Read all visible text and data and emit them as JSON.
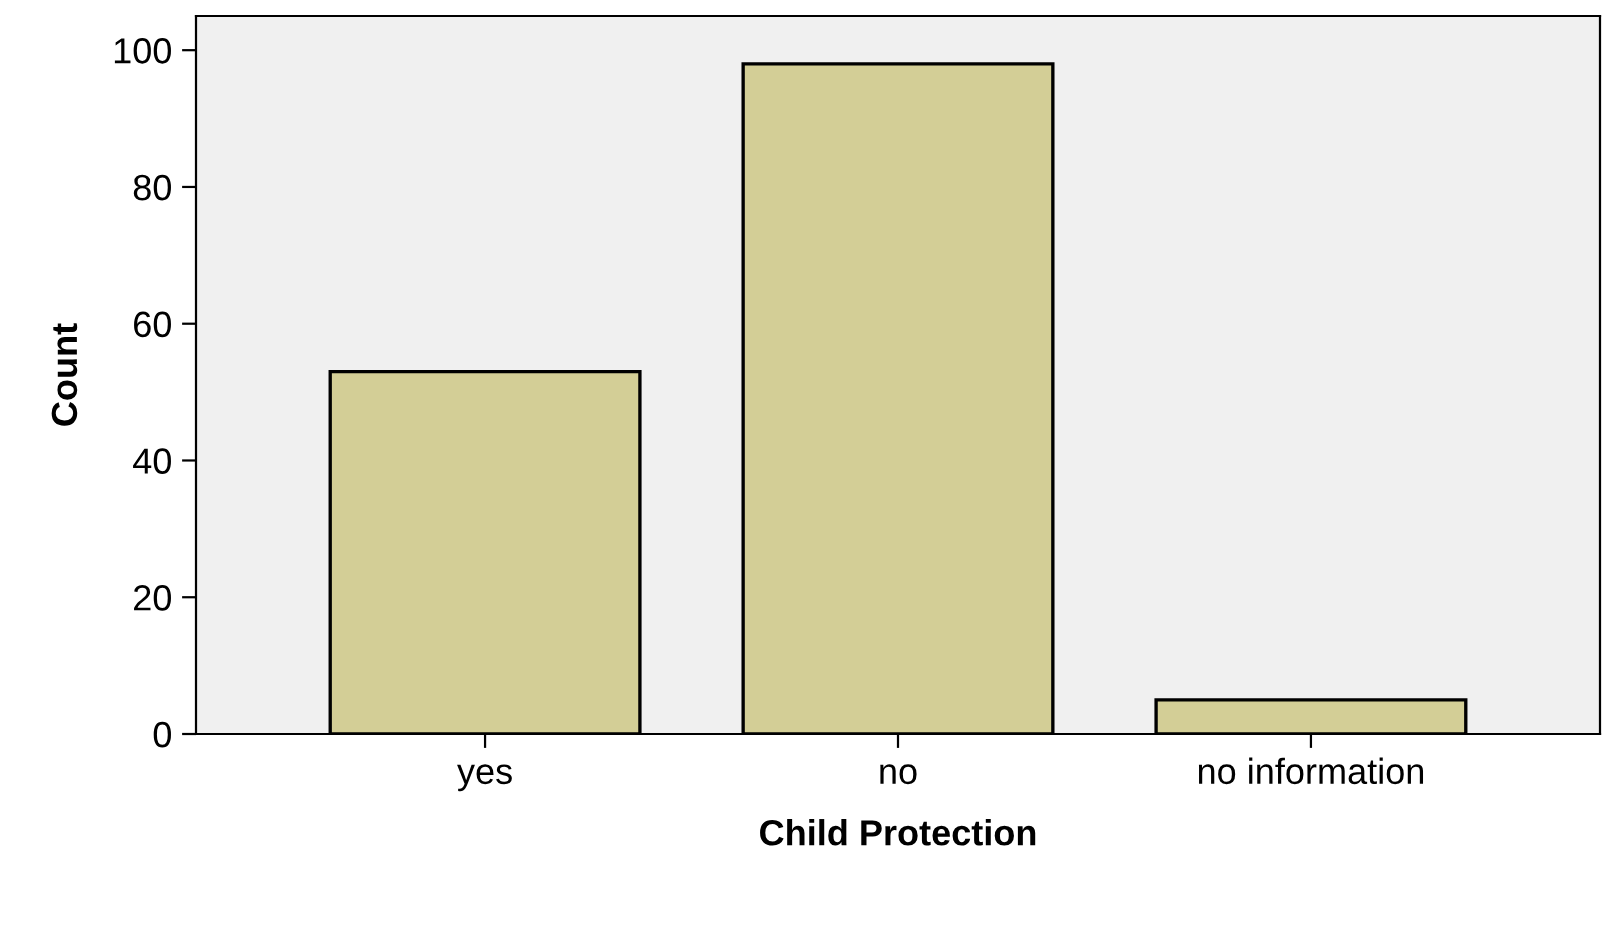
{
  "chart_data": {
    "type": "bar",
    "xlabel": "Child Protection",
    "ylabel": "Count",
    "categories": [
      "yes",
      "no",
      "no information"
    ],
    "values": [
      53,
      98,
      5
    ],
    "color": "#d3ce96",
    "ylim": [
      0,
      105
    ],
    "yticks": [
      0,
      20,
      40,
      60,
      80,
      100
    ],
    "grid": false
  }
}
